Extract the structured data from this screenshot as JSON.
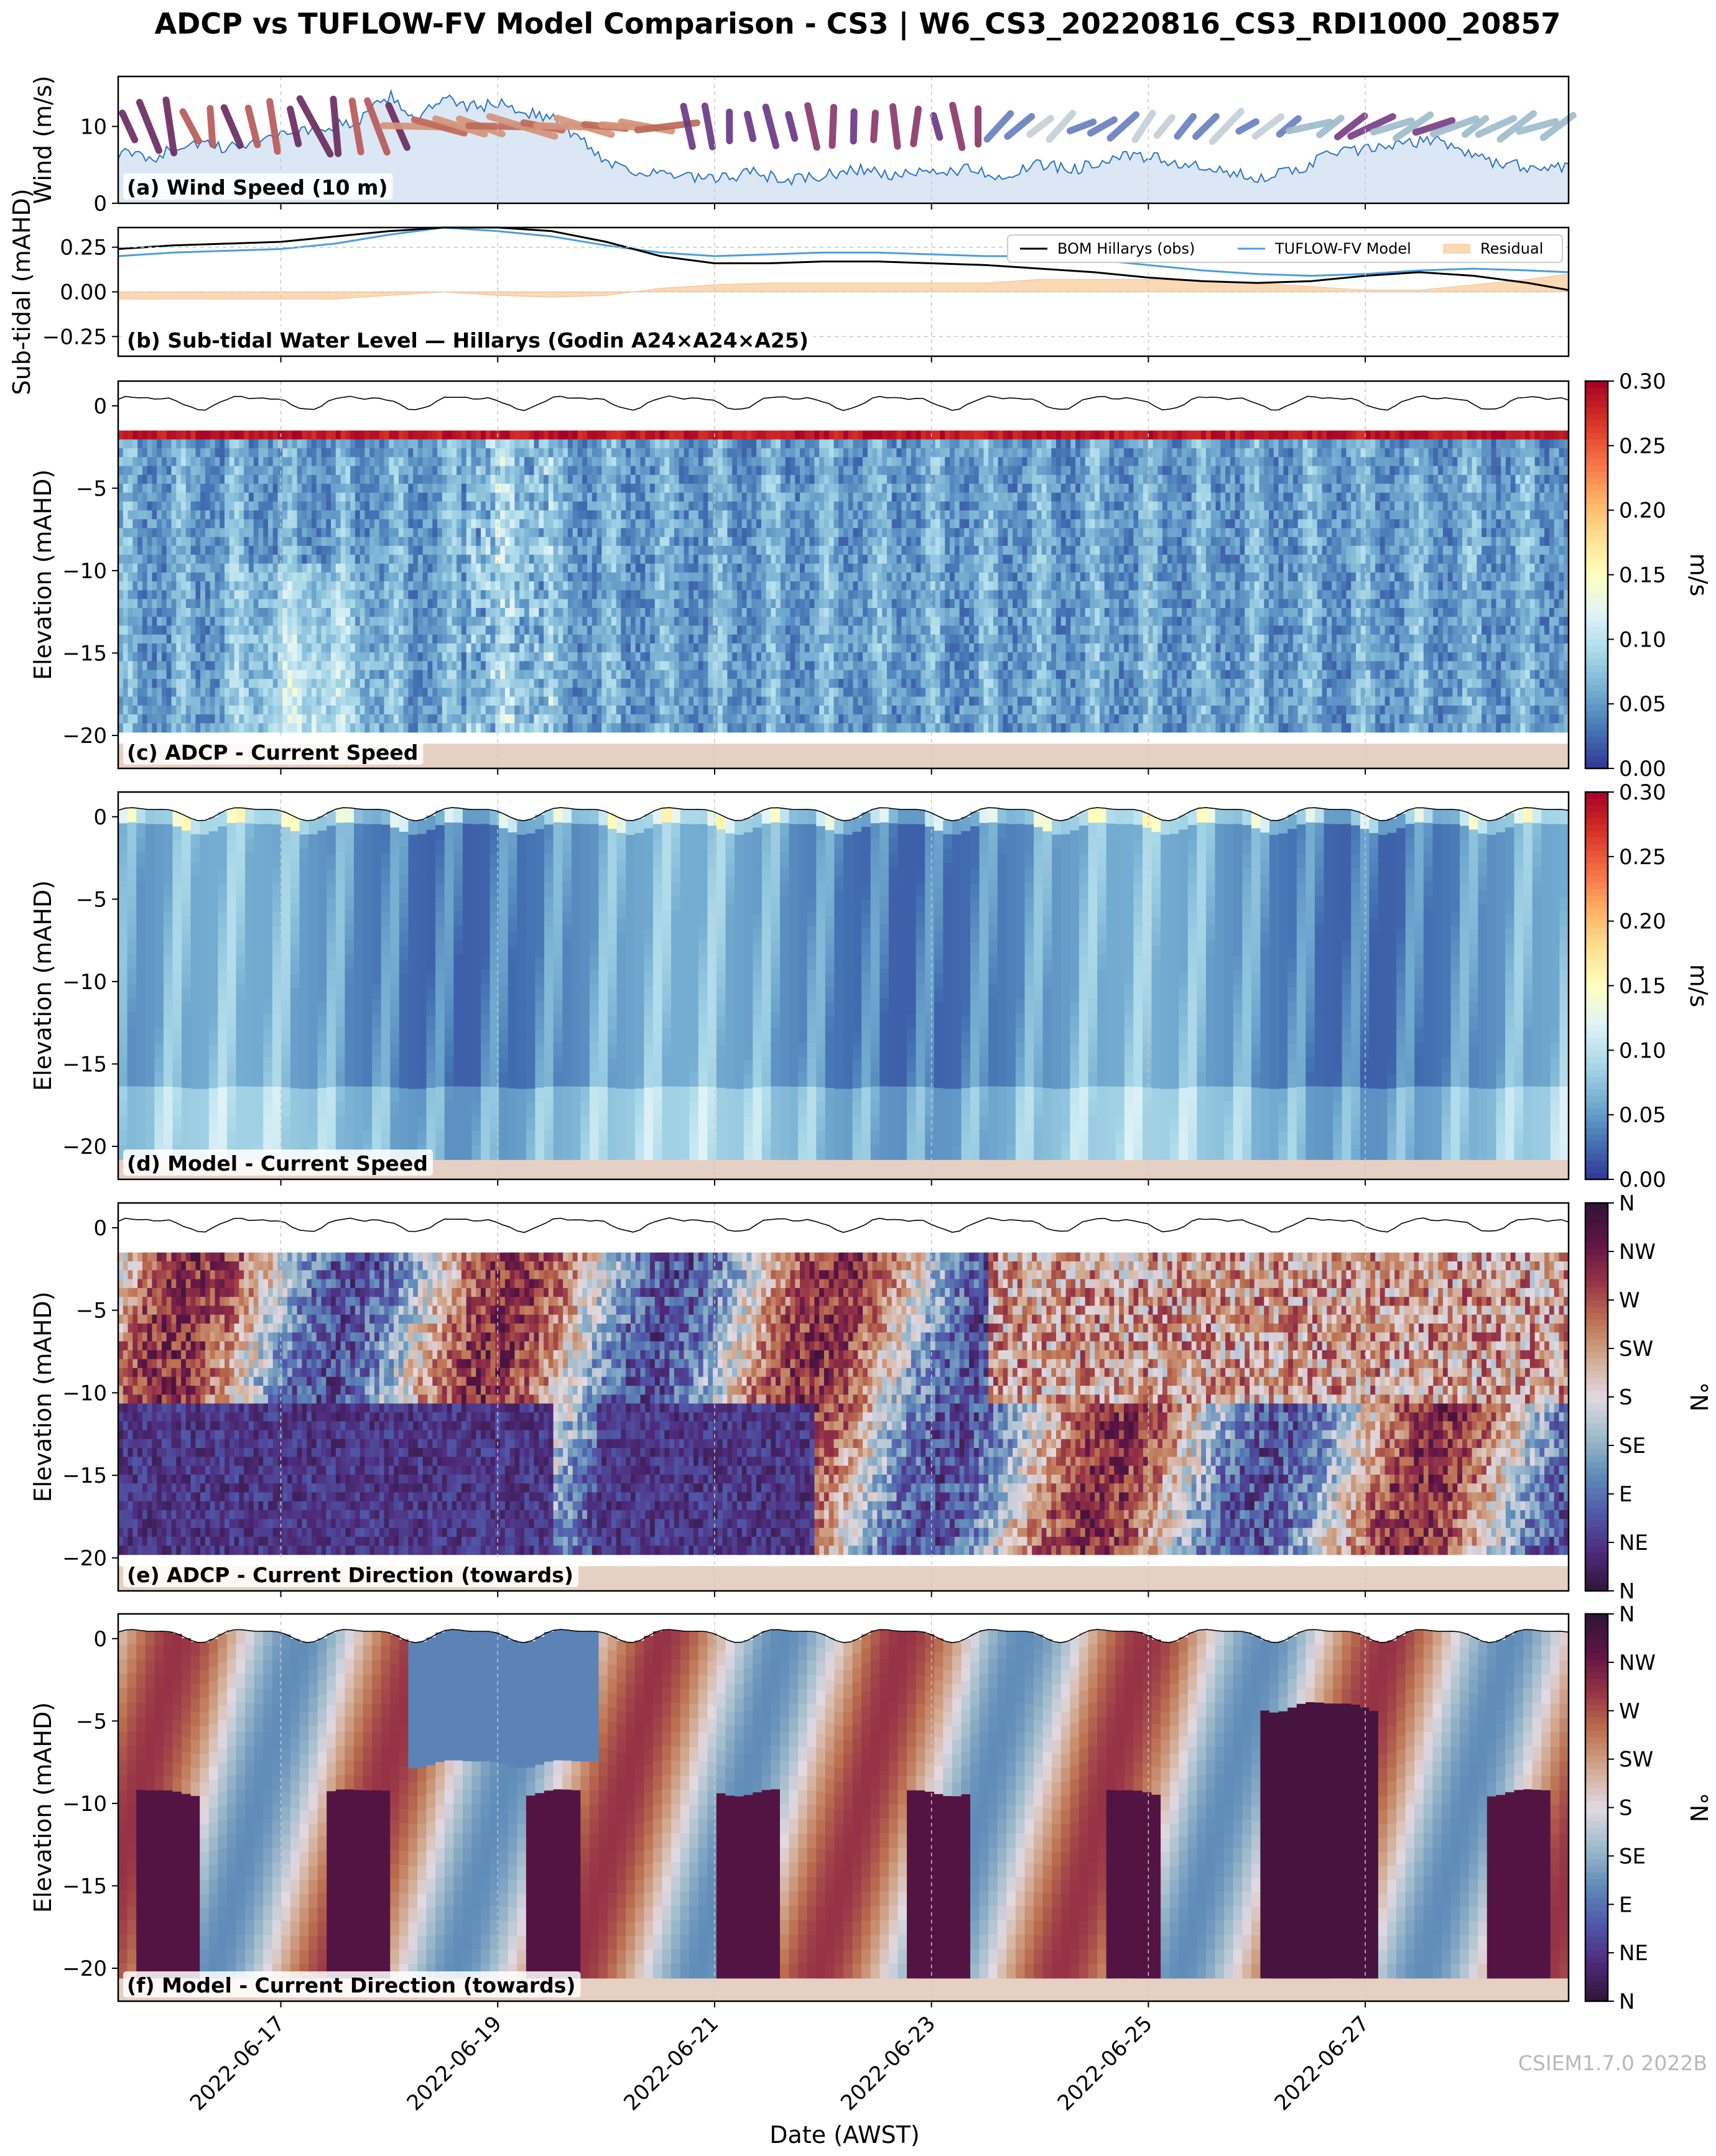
{
  "title": "ADCP vs TUFLOW-FV Model Comparison - CS3 | W6_CS3_20220816_CS3_RDI1000_20857",
  "watermark": "CSIEM1.7.0 2022B",
  "colors": {
    "bom_line": "#000000",
    "model_line": "#4a9fdc",
    "residual_fill": "#fbd9b4",
    "wind_fill": "#dce7f5",
    "wind_line": "#2f74c0",
    "seabed": "#e6d0c4"
  },
  "shared_x": {
    "label": "Date (AWST)",
    "range": [
      "2022-06-15T12:00",
      "2022-06-28T21:00"
    ],
    "ticks": [
      "2022-06-17",
      "2022-06-19",
      "2022-06-21",
      "2022-06-23",
      "2022-06-25",
      "2022-06-27"
    ],
    "grid": true
  },
  "chart_data": [
    {
      "id": "a",
      "type": "area",
      "label": "(a) Wind Speed (10 m)",
      "ylabel": "Wind (m/s)",
      "ylim": [
        0,
        16.5
      ],
      "yticks": [
        0,
        10
      ],
      "x": [
        "2022-06-15T12:00",
        "2022-06-15T20:00",
        "2022-06-16T04:00",
        "2022-06-16T12:00",
        "2022-06-16T20:00",
        "2022-06-17T04:00",
        "2022-06-17T12:00",
        "2022-06-17T18:00",
        "2022-06-18T00:00",
        "2022-06-18T06:00",
        "2022-06-18T12:00",
        "2022-06-18T18:00",
        "2022-06-19T00:00",
        "2022-06-19T06:00",
        "2022-06-19T12:00",
        "2022-06-19T18:00",
        "2022-06-20T00:00",
        "2022-06-20T08:00",
        "2022-06-20T16:00",
        "2022-06-21T00:00",
        "2022-06-21T08:00",
        "2022-06-21T16:00",
        "2022-06-22T00:00",
        "2022-06-22T08:00",
        "2022-06-22T16:00",
        "2022-06-23T00:00",
        "2022-06-23T08:00",
        "2022-06-23T16:00",
        "2022-06-24T00:00",
        "2022-06-24T08:00",
        "2022-06-24T16:00",
        "2022-06-25T00:00",
        "2022-06-25T08:00",
        "2022-06-25T16:00",
        "2022-06-26T00:00",
        "2022-06-26T08:00",
        "2022-06-26T16:00",
        "2022-06-27T00:00",
        "2022-06-27T08:00",
        "2022-06-27T16:00",
        "2022-06-28T00:00",
        "2022-06-28T08:00",
        "2022-06-28T16:00",
        "2022-06-28T21:00"
      ],
      "values": [
        6.5,
        6.0,
        8.0,
        7.0,
        8.5,
        9.5,
        10.0,
        11.0,
        14.0,
        11.0,
        13.5,
        12.5,
        13.0,
        12.0,
        11.0,
        8.5,
        5.5,
        4.0,
        3.5,
        3.0,
        4.0,
        3.0,
        3.5,
        4.5,
        3.5,
        4.0,
        4.5,
        3.5,
        5.0,
        4.5,
        6.0,
        6.0,
        5.0,
        4.0,
        3.5,
        4.0,
        6.5,
        7.0,
        7.5,
        8.5,
        6.0,
        5.0,
        4.5,
        5.0
      ],
      "barbs": "wind direction sticks coloured by direction (circular colormap), drawn along y = 10 m/s"
    },
    {
      "id": "b",
      "type": "line",
      "label": "(b) Sub-tidal Water Level — Hillarys (Godin A24×A24×A25)",
      "ylabel": "Sub-tidal (mAHD)",
      "ylim": [
        -0.36,
        0.36
      ],
      "yticks": [
        -0.25,
        0.0,
        0.25
      ],
      "legend": {
        "placement": "upper right",
        "entries": [
          "BOM Hillarys (obs)",
          "TUFLOW-FV Model",
          "Residual"
        ]
      },
      "x": [
        "2022-06-15T12:00",
        "2022-06-16T00:00",
        "2022-06-16T12:00",
        "2022-06-17T00:00",
        "2022-06-17T12:00",
        "2022-06-18T00:00",
        "2022-06-18T12:00",
        "2022-06-19T00:00",
        "2022-06-19T12:00",
        "2022-06-20T00:00",
        "2022-06-20T12:00",
        "2022-06-21T00:00",
        "2022-06-21T12:00",
        "2022-06-22T00:00",
        "2022-06-22T12:00",
        "2022-06-23T00:00",
        "2022-06-23T12:00",
        "2022-06-24T00:00",
        "2022-06-24T12:00",
        "2022-06-25T00:00",
        "2022-06-25T12:00",
        "2022-06-26T00:00",
        "2022-06-26T12:00",
        "2022-06-27T00:00",
        "2022-06-27T12:00",
        "2022-06-28T00:00",
        "2022-06-28T12:00",
        "2022-06-28T21:00"
      ],
      "series": [
        {
          "name": "BOM Hillarys (obs)",
          "values": [
            0.24,
            0.26,
            0.27,
            0.28,
            0.31,
            0.34,
            0.36,
            0.36,
            0.34,
            0.28,
            0.2,
            0.16,
            0.16,
            0.17,
            0.17,
            0.16,
            0.15,
            0.13,
            0.11,
            0.08,
            0.06,
            0.05,
            0.06,
            0.09,
            0.11,
            0.09,
            0.05,
            0.01
          ]
        },
        {
          "name": "TUFLOW-FV Model",
          "values": [
            0.2,
            0.22,
            0.23,
            0.24,
            0.27,
            0.32,
            0.36,
            0.34,
            0.31,
            0.26,
            0.22,
            0.2,
            0.21,
            0.22,
            0.22,
            0.21,
            0.2,
            0.2,
            0.18,
            0.15,
            0.12,
            0.1,
            0.09,
            0.1,
            0.12,
            0.13,
            0.12,
            0.11
          ]
        },
        {
          "name": "Residual",
          "values": [
            -0.04,
            -0.04,
            -0.04,
            -0.04,
            -0.04,
            -0.02,
            0.0,
            -0.02,
            -0.03,
            -0.02,
            0.02,
            0.04,
            0.05,
            0.05,
            0.05,
            0.05,
            0.05,
            0.07,
            0.07,
            0.07,
            0.06,
            0.05,
            0.03,
            0.01,
            0.01,
            0.04,
            0.07,
            0.1
          ]
        }
      ]
    },
    {
      "id": "c",
      "type": "heatmap",
      "label": "(c) ADCP - Current Speed",
      "ylabel": "Elevation (mAHD)",
      "ylim": [
        -22,
        1.5
      ],
      "yticks": [
        -20,
        -15,
        -10,
        -5,
        0
      ],
      "colorbar": {
        "label": "m/s",
        "range": [
          0.0,
          0.3
        ],
        "ticks": [
          0.0,
          0.05,
          0.1,
          0.15,
          0.2,
          0.25,
          0.3
        ],
        "colormap": "RdYlBu_r"
      },
      "water_level": "tidal surface line near 0 mAHD",
      "data_top": -1.5,
      "data_bottom": -19.8,
      "seabed": -20.5
    },
    {
      "id": "d",
      "type": "heatmap",
      "label": "(d) Model - Current Speed",
      "ylabel": "Elevation (mAHD)",
      "ylim": [
        -22,
        1.5
      ],
      "yticks": [
        -20,
        -15,
        -10,
        -5,
        0
      ],
      "colorbar": {
        "label": "m/s",
        "range": [
          0.0,
          0.3
        ],
        "ticks": [
          0.0,
          0.05,
          0.1,
          0.15,
          0.2,
          0.25,
          0.3
        ],
        "colormap": "RdYlBu_r"
      },
      "data_top": "water surface",
      "data_bottom": -20.8,
      "seabed": -20.8
    },
    {
      "id": "e",
      "type": "heatmap",
      "label": "(e) ADCP - Current Direction (towards)",
      "ylabel": "Elevation (mAHD)",
      "ylim": [
        -22,
        1.5
      ],
      "yticks": [
        -20,
        -15,
        -10,
        -5,
        0
      ],
      "colorbar": {
        "label": "°N",
        "ticks": [
          "N",
          "NE",
          "E",
          "SE",
          "S",
          "SW",
          "W",
          "NW",
          "N"
        ],
        "colormap": "twilight_shifted"
      },
      "data_top": -1.5,
      "data_bottom": -19.8,
      "seabed": -20.5
    },
    {
      "id": "f",
      "type": "heatmap",
      "label": "(f) Model - Current Direction (towards)",
      "ylabel": "Elevation (mAHD)",
      "ylim": [
        -22,
        1.5
      ],
      "yticks": [
        -20,
        -15,
        -10,
        -5,
        0
      ],
      "colorbar": {
        "label": "°N",
        "ticks": [
          "N",
          "NE",
          "E",
          "SE",
          "S",
          "SW",
          "W",
          "NW",
          "N"
        ],
        "colormap": "twilight_shifted"
      },
      "data_top": "water surface",
      "data_bottom": -20.6,
      "seabed": -20.6
    }
  ]
}
